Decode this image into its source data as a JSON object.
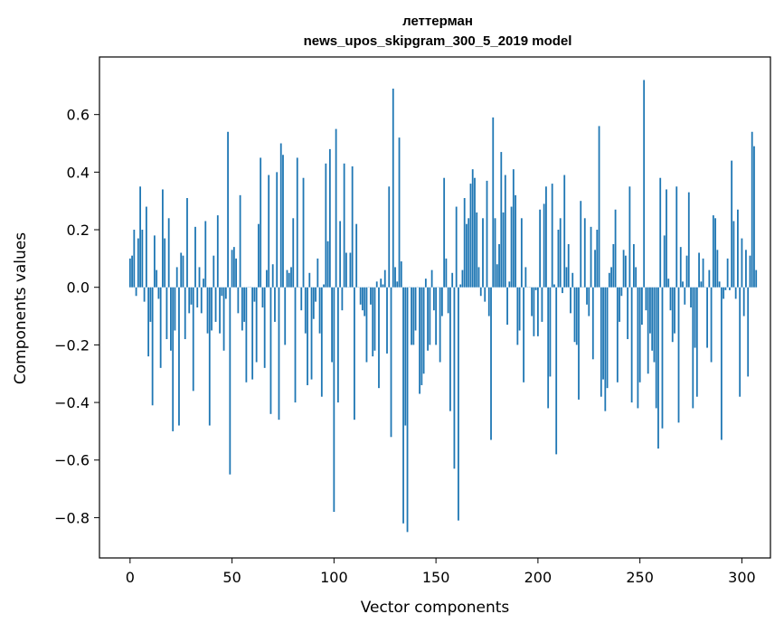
{
  "chart_data": {
    "type": "bar",
    "title": [
      "леттерман",
      "news_upos_skipgram_300_5_2019 model"
    ],
    "xlabel": "Vector components",
    "ylabel": "Components values",
    "xlim": [
      -15,
      314
    ],
    "ylim": [
      -0.94,
      0.8
    ],
    "xticks": [
      0,
      50,
      100,
      150,
      200,
      250,
      300
    ],
    "xtick_labels": [
      "0",
      "50",
      "100",
      "150",
      "200",
      "250",
      "300"
    ],
    "yticks": [
      -0.8,
      -0.6,
      -0.4,
      -0.2,
      0.0,
      0.2,
      0.4,
      0.6
    ],
    "ytick_labels": [
      "−0.8",
      "−0.6",
      "−0.4",
      "−0.2",
      "0.0",
      "0.2",
      "0.4",
      "0.6"
    ],
    "bar_color": "#1f77b4",
    "grid": false,
    "values": [
      0.1,
      0.11,
      0.2,
      -0.03,
      0.17,
      0.35,
      0.2,
      -0.05,
      0.28,
      -0.24,
      -0.12,
      -0.41,
      0.18,
      0.06,
      -0.04,
      -0.28,
      0.34,
      0.17,
      -0.18,
      0.24,
      -0.22,
      -0.5,
      -0.15,
      0.07,
      -0.48,
      0.12,
      0.11,
      -0.18,
      0.31,
      -0.09,
      -0.06,
      -0.36,
      0.21,
      -0.07,
      0.07,
      -0.09,
      0.03,
      0.23,
      -0.16,
      -0.48,
      -0.15,
      0.11,
      -0.12,
      0.25,
      -0.16,
      -0.03,
      -0.22,
      -0.04,
      0.54,
      -0.65,
      0.13,
      0.14,
      0.1,
      -0.09,
      0.32,
      -0.15,
      -0.12,
      -0.33,
      0.0,
      0.0,
      -0.32,
      -0.05,
      -0.26,
      0.22,
      0.45,
      -0.07,
      -0.28,
      0.06,
      0.39,
      -0.44,
      0.08,
      -0.12,
      0.4,
      -0.46,
      0.5,
      0.46,
      -0.2,
      0.06,
      0.05,
      0.07,
      0.24,
      -0.4,
      0.45,
      0.0,
      -0.08,
      0.38,
      -0.16,
      -0.34,
      0.05,
      -0.32,
      -0.11,
      -0.05,
      0.1,
      -0.16,
      -0.38,
      0.01,
      0.43,
      0.16,
      0.48,
      -0.26,
      -0.78,
      0.55,
      -0.4,
      0.23,
      -0.08,
      0.43,
      0.12,
      0.0,
      0.12,
      0.42,
      -0.46,
      0.22,
      0.0,
      -0.06,
      -0.08,
      -0.1,
      -0.26,
      0.0,
      -0.06,
      -0.24,
      -0.22,
      0.02,
      -0.35,
      0.03,
      0.01,
      0.06,
      -0.23,
      0.35,
      -0.52,
      0.69,
      0.07,
      0.02,
      0.52,
      0.09,
      -0.82,
      -0.48,
      -0.85,
      0.0,
      -0.2,
      -0.2,
      -0.15,
      -0.0,
      -0.37,
      -0.34,
      -0.3,
      0.03,
      -0.22,
      -0.2,
      0.06,
      -0.08,
      -0.2,
      0.0,
      -0.26,
      -0.1,
      0.38,
      0.1,
      -0.09,
      -0.43,
      0.05,
      -0.63,
      0.28,
      -0.81,
      0.01,
      0.06,
      0.31,
      0.22,
      0.24,
      0.36,
      0.41,
      0.38,
      0.26,
      0.07,
      -0.03,
      0.24,
      -0.05,
      0.37,
      -0.1,
      -0.53,
      0.59,
      0.24,
      0.08,
      0.15,
      0.47,
      0.26,
      0.39,
      -0.13,
      0.02,
      0.28,
      0.41,
      0.32,
      -0.2,
      -0.15,
      0.24,
      -0.33,
      0.07,
      0.0,
      0.0,
      -0.1,
      -0.17,
      -0.01,
      -0.17,
      0.27,
      -0.12,
      0.29,
      0.35,
      -0.42,
      -0.31,
      0.36,
      0.01,
      -0.58,
      0.2,
      0.24,
      -0.02,
      0.39,
      0.07,
      0.15,
      -0.09,
      0.05,
      -0.19,
      -0.2,
      -0.39,
      0.3,
      0.0,
      0.24,
      -0.06,
      -0.1,
      0.21,
      -0.25,
      0.13,
      0.2,
      0.56,
      -0.38,
      -0.32,
      -0.43,
      -0.35,
      0.05,
      0.07,
      0.15,
      0.27,
      -0.33,
      -0.12,
      -0.03,
      0.13,
      0.11,
      -0.18,
      0.35,
      -0.4,
      0.15,
      0.07,
      -0.42,
      -0.33,
      -0.13,
      0.72,
      -0.08,
      -0.3,
      -0.16,
      -0.22,
      -0.26,
      -0.42,
      -0.56,
      0.38,
      -0.49,
      0.18,
      0.34,
      0.03,
      -0.08,
      -0.19,
      -0.16,
      0.35,
      -0.47,
      0.14,
      0.02,
      -0.06,
      0.11,
      0.33,
      -0.07,
      -0.42,
      -0.21,
      -0.38,
      0.12,
      0.02,
      0.1,
      0.0,
      -0.21,
      0.06,
      -0.26,
      0.25,
      0.24,
      0.13,
      0.02,
      -0.53,
      -0.04,
      -0.01,
      0.1,
      -0.01,
      0.44,
      0.23,
      -0.04,
      0.27,
      -0.38,
      0.17,
      -0.1,
      0.13,
      -0.31,
      0.11,
      0.54,
      0.49,
      0.06
    ]
  }
}
